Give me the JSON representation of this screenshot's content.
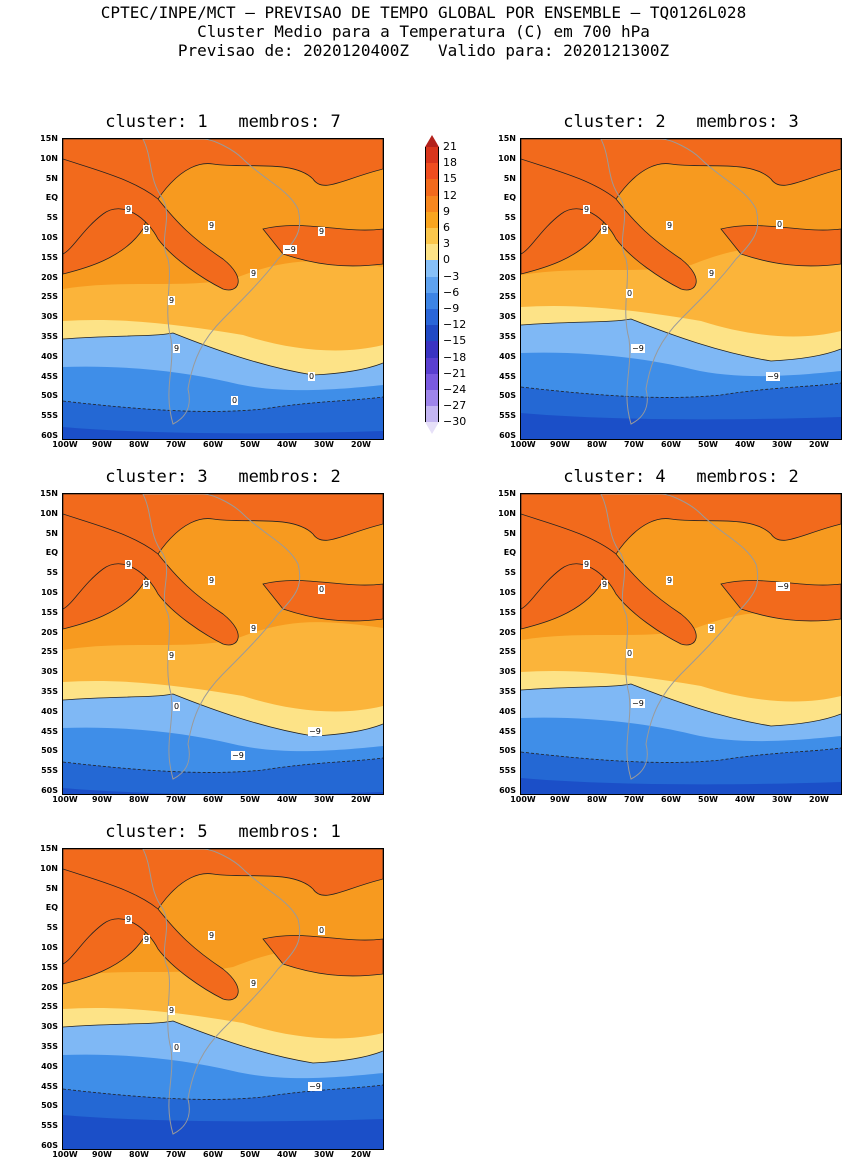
{
  "header": {
    "line1": "CPTEC/INPE/MCT – PREVISAO DE TEMPO GLOBAL POR ENSEMBLE – TQ0126L028",
    "line2": "Cluster Medio para a Temperatura (C) em 700 hPa",
    "line3": "Previsao de: 2020120400Z   Valido para: 2020121300Z"
  },
  "lat_ticks": [
    "15N",
    "10N",
    "5N",
    "EQ",
    "5S",
    "10S",
    "15S",
    "20S",
    "25S",
    "30S",
    "35S",
    "40S",
    "45S",
    "50S",
    "55S",
    "60S"
  ],
  "lon_ticks": [
    "100W",
    "90W",
    "80W",
    "70W",
    "60W",
    "50W",
    "40W",
    "30W",
    "20W"
  ],
  "colors": {
    "c9": "#f26a1c",
    "c6": "#f79a1f",
    "c3": "#fbb43a",
    "c0": "#fde387",
    "cm3": "#7fb8f5",
    "cm6": "#3f8ee8",
    "cm9": "#2468d4",
    "cm12": "#1b4fc8",
    "land": "#9a9a9a"
  },
  "colorbar": {
    "levels": [
      "21",
      "18",
      "15",
      "12",
      "9",
      "6",
      "3",
      "0",
      "−3",
      "−6",
      "−9",
      "−12",
      "−15",
      "−18",
      "−21",
      "−24",
      "−27",
      "−30"
    ],
    "colors": [
      "#b3211b",
      "#d8351c",
      "#ef4d1f",
      "#f26a1c",
      "#f7871e",
      "#f9a51f",
      "#fbc74c",
      "#fde387",
      "#87c0f7",
      "#5ea2ef",
      "#3d84e4",
      "#2a66d8",
      "#2049c4",
      "#3a33c2",
      "#5a3fd0",
      "#7a5ae0",
      "#9e85ea",
      "#c4b6f2",
      "#e6e0f8"
    ]
  },
  "panels": [
    {
      "title": "cluster: 1   membros: 7",
      "labels": [
        "9",
        "9",
        "9",
        "9",
        "9",
        "9",
        "9",
        "0",
        "0",
        "−9"
      ]
    },
    {
      "title": "cluster: 2   membros: 3",
      "labels": [
        "9",
        "9",
        "9",
        "9",
        "0",
        "0",
        "−9",
        "−9"
      ]
    },
    {
      "title": "cluster: 3   membros: 2",
      "labels": [
        "9",
        "9",
        "9",
        "9",
        "9",
        "0",
        "0",
        "−9",
        "−9"
      ]
    },
    {
      "title": "cluster: 4   membros: 2",
      "labels": [
        "9",
        "9",
        "9",
        "9",
        "0",
        "−9",
        "−9"
      ]
    },
    {
      "title": "cluster: 5   membros: 1",
      "labels": [
        "9",
        "9",
        "9",
        "9",
        "9",
        "0",
        "0",
        "−9"
      ]
    }
  ]
}
